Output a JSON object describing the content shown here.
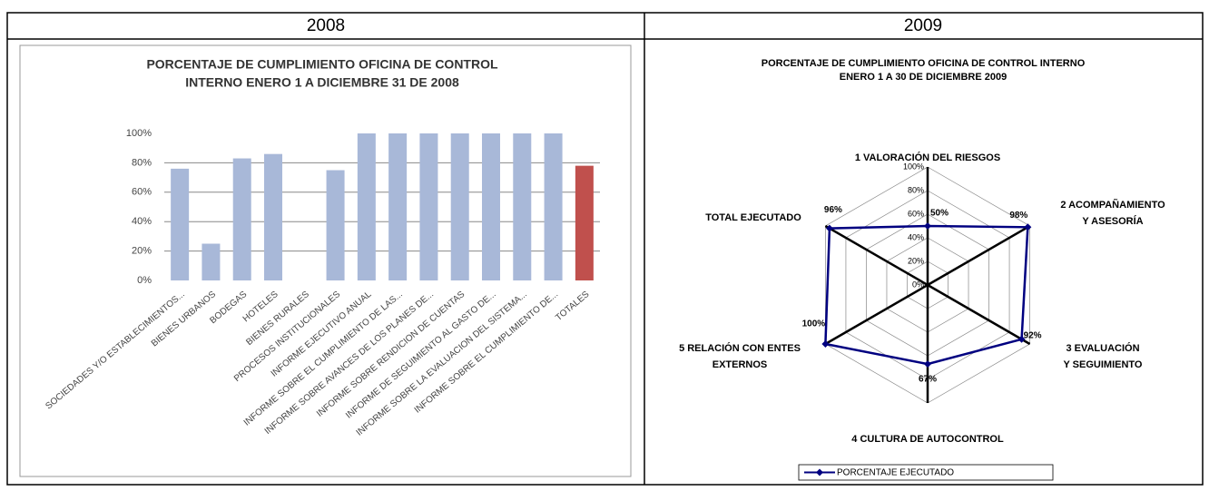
{
  "table": {
    "headers": [
      "2008",
      "2009"
    ]
  },
  "chart_data": [
    {
      "type": "bar",
      "title": [
        "PORCENTAJE DE CUMPLIMIENTO OFICINA DE CONTROL",
        "INTERNO ENERO 1 A DICIEMBRE 31 DE 2008"
      ],
      "categories": [
        "SOCIEDADES Y/O ESTABLECIMIENTOS...",
        "BIENES URBANOS",
        "BODEGAS",
        "HOTELES",
        "BIENES RURALES",
        "PROCESOS INSTITUCIONALES",
        "INFORME EJECUTIVO ANUAL",
        "INFORME SOBRE EL CUMPLIMIENTO DE LAS...",
        "INFORME SOBRE AVANCES DE LOS PLANES DE...",
        "INFORME SOBRE RENDICION DE CUENTAS",
        "INFORME DE SEGUIMIENTO AL GASTO DE...",
        "INFORME SOBRE LA EVALUACION DEL SISTEMA...",
        "INFORME SOBRE EL CUMPLIMIENTO DE...",
        "TOTALES"
      ],
      "values": [
        76,
        25,
        83,
        86,
        0,
        75,
        100,
        100,
        100,
        100,
        100,
        100,
        100,
        78
      ],
      "colors": [
        "#a8b8d8",
        "#a8b8d8",
        "#a8b8d8",
        "#a8b8d8",
        "#a8b8d8",
        "#a8b8d8",
        "#a8b8d8",
        "#a8b8d8",
        "#a8b8d8",
        "#a8b8d8",
        "#a8b8d8",
        "#a8b8d8",
        "#a8b8d8",
        "#c0504d"
      ],
      "ylim": [
        0,
        100
      ],
      "yticks": [
        {
          "value": 0,
          "label": "0%"
        },
        {
          "value": 20,
          "label": "20%"
        },
        {
          "value": 40,
          "label": "40%"
        },
        {
          "value": 60,
          "label": "60%"
        },
        {
          "value": 80,
          "label": "80%"
        },
        {
          "value": 100,
          "label": "100%"
        }
      ],
      "grid": true
    },
    {
      "type": "radar",
      "title": [
        "PORCENTAJE DE CUMPLIMIENTO OFICINA DE CONTROL INTERNO",
        "ENERO 1 A 30 DE DICIEMBRE 2009"
      ],
      "categories": [
        [
          "1 VALORACIÓN DEL RIESGOS"
        ],
        [
          "2 ACOMPAÑAMIENTO",
          "Y ASESORÍA"
        ],
        [
          "3 EVALUACIÓN",
          "Y SEGUIMIENTO"
        ],
        [
          "4 CULTURA DE AUTOCONTROL"
        ],
        [
          "5 RELACIÓN CON ENTES",
          "EXTERNOS"
        ],
        [
          "TOTAL EJECUTADO"
        ]
      ],
      "series": [
        {
          "name": "PORCENTAJE EJECUTADO",
          "color": "#000080",
          "values": [
            50,
            98,
            92,
            67,
            100,
            96
          ],
          "value_labels": [
            "50%",
            "98%",
            "92%",
            "67%",
            "100%",
            "96%"
          ]
        }
      ],
      "rlim": [
        0,
        100
      ],
      "rticks": [
        {
          "value": 0,
          "label": "0%"
        },
        {
          "value": 20,
          "label": "20%"
        },
        {
          "value": 40,
          "label": "40%"
        },
        {
          "value": 60,
          "label": "60%"
        },
        {
          "value": 80,
          "label": "80%"
        },
        {
          "value": 100,
          "label": "100%"
        }
      ],
      "legend": "bottom"
    }
  ]
}
